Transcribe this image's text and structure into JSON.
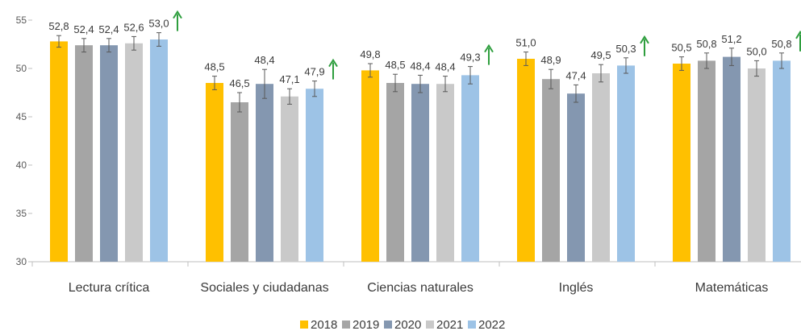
{
  "chart_data": {
    "type": "bar",
    "categories": [
      "Lectura crítica",
      "Sociales y ciudadanas",
      "Ciencias naturales",
      "Inglés",
      "Matemáticas"
    ],
    "series": [
      {
        "name": "2018",
        "color": "#FFC000",
        "values": [
          52.8,
          48.5,
          49.8,
          51.0,
          50.5
        ],
        "labels": [
          "52,8",
          "48,5",
          "49,8",
          "51,0",
          "50,5"
        ]
      },
      {
        "name": "2019",
        "color": "#A5A5A5",
        "values": [
          52.4,
          46.5,
          48.5,
          48.9,
          50.8
        ],
        "labels": [
          "52,4",
          "46,5",
          "48,5",
          "48,9",
          "50,8"
        ]
      },
      {
        "name": "2020",
        "color": "#8497B0",
        "values": [
          52.4,
          48.4,
          48.4,
          47.4,
          51.2
        ],
        "labels": [
          "52,4",
          "48,4",
          "48,4",
          "47,4",
          "51,2"
        ]
      },
      {
        "name": "2021",
        "color": "#C9C9C9",
        "values": [
          52.6,
          47.1,
          48.4,
          49.5,
          50.0
        ],
        "labels": [
          "52,6",
          "47,1",
          "48,4",
          "49,5",
          "50,0"
        ]
      },
      {
        "name": "2022",
        "color": "#9DC3E6",
        "values": [
          53.0,
          47.9,
          49.3,
          50.3,
          50.8
        ],
        "labels": [
          "53,0",
          "47,9",
          "49,3",
          "50,3",
          "50,8"
        ]
      }
    ],
    "error_bars": [
      [
        0.6,
        0.7,
        0.7,
        0.7,
        0.7
      ],
      [
        0.7,
        1.0,
        1.5,
        0.8,
        0.8
      ],
      [
        0.7,
        0.9,
        0.9,
        0.8,
        0.9
      ],
      [
        0.7,
        1.0,
        0.9,
        0.9,
        0.8
      ],
      [
        0.7,
        0.8,
        0.9,
        0.8,
        0.8
      ]
    ],
    "trend_arrow": {
      "direction": "up",
      "color": "#2E9E3E",
      "series": "2022"
    },
    "ylim": [
      30,
      55
    ],
    "yticks": [
      30,
      35,
      40,
      45,
      50,
      55
    ],
    "grid": false,
    "legend_position": "bottom-center",
    "title": "",
    "xlabel": "",
    "ylabel": ""
  }
}
